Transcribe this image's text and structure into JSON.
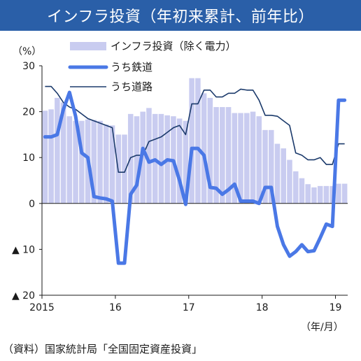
{
  "header": {
    "title": "インフラ投資（年初来累計、前年比）"
  },
  "source": "（資料）国家統計局「全国固定資産投資」",
  "colors": {
    "title_bg": "#2a5fa8",
    "bars": "#c9ccf0",
    "railway": "#4a78e6",
    "road": "#1b3a6b"
  },
  "chart_data": {
    "type": "bar+line",
    "ylabel": "（%）",
    "xlabel": "（年/月）",
    "ylim": [
      -20,
      30
    ],
    "yticks": [
      {
        "value": 30,
        "label": "30"
      },
      {
        "value": 20,
        "label": "20"
      },
      {
        "value": 10,
        "label": "10"
      },
      {
        "value": 0,
        "label": "0"
      },
      {
        "value": -10,
        "label": "▲ 10"
      },
      {
        "value": -20,
        "label": "▲ 20"
      }
    ],
    "xticks": [
      {
        "index": 0,
        "label": "2015"
      },
      {
        "index": 12,
        "label": "16"
      },
      {
        "index": 24,
        "label": "17"
      },
      {
        "index": 36,
        "label": "18"
      },
      {
        "index": 48,
        "label": "19"
      }
    ],
    "n_periods": 50,
    "legend": [
      "インフラ投資（除く電力）",
      "うち鉄道",
      "うち道路"
    ],
    "series": [
      {
        "name": "インフラ投資（除く電力）",
        "type": "bar",
        "values": [
          20.2,
          20.5,
          23.0,
          22.0,
          19.0,
          18.0,
          18.0,
          18.3,
          18.2,
          18.0,
          17.2,
          17.0,
          15.0,
          15.0,
          19.5,
          19.0,
          20.0,
          20.8,
          19.5,
          19.5,
          19.2,
          19.0,
          18.5,
          18.0,
          27.3,
          27.3,
          24.0,
          23.0,
          21.0,
          21.0,
          21.0,
          19.7,
          19.7,
          19.7,
          20.0,
          19.0,
          16.0,
          16.0,
          13.0,
          12.0,
          9.5,
          7.0,
          5.5,
          4.2,
          3.5,
          3.8,
          3.8,
          3.8,
          4.3,
          4.3
        ]
      },
      {
        "name": "うち鉄道",
        "type": "line",
        "values": [
          14.5,
          14.5,
          15.0,
          20.5,
          24.2,
          19.0,
          11.0,
          10.0,
          1.5,
          1.2,
          1.0,
          0.5,
          -13.0,
          -13.0,
          2.0,
          4.0,
          12.0,
          9.0,
          9.5,
          8.5,
          9.5,
          9.3,
          5.0,
          -0.2,
          12.0,
          12.0,
          10.5,
          3.5,
          3.3,
          2.0,
          3.0,
          4.2,
          0.5,
          0.5,
          0.5,
          0.0,
          3.5,
          3.5,
          -5.0,
          -9.0,
          -11.5,
          -10.5,
          -9.0,
          -10.5,
          -10.3,
          -7.5,
          -4.5,
          -5.0,
          22.5,
          22.5
        ]
      },
      {
        "name": "うち道路",
        "type": "line",
        "values": [
          25.5,
          25.5,
          24.0,
          22.0,
          21.0,
          20.5,
          19.5,
          18.5,
          18.0,
          17.5,
          17.0,
          16.5,
          6.8,
          6.8,
          10.0,
          10.5,
          10.5,
          13.5,
          14.0,
          14.5,
          15.5,
          16.5,
          17.0,
          15.0,
          21.7,
          21.7,
          24.7,
          24.7,
          23.2,
          23.2,
          24.0,
          24.0,
          24.9,
          24.7,
          24.7,
          22.5,
          19.2,
          19.2,
          19.0,
          18.0,
          17.0,
          11.0,
          10.5,
          9.5,
          9.5,
          10.0,
          8.5,
          8.5,
          13.0,
          13.0
        ]
      }
    ]
  }
}
